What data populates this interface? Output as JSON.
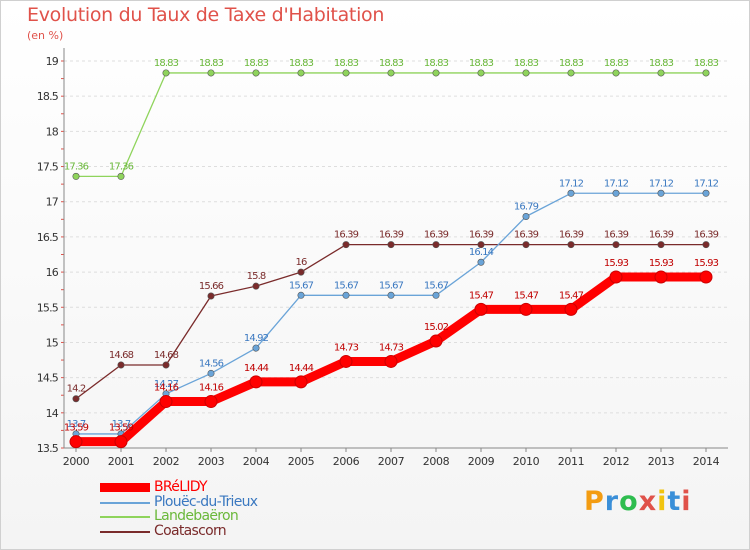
{
  "header": {
    "title": "Evolution du Taux de Taxe d'Habitation",
    "unit": "(en %)"
  },
  "brand": {
    "logo_text": "Proxiti",
    "colors": [
      "#f39c12",
      "#3a8fd8",
      "#2ebd4f",
      "#e0524a",
      "#f1c40f",
      "#3a8fd8",
      "#e0524a"
    ]
  },
  "chart_data": {
    "type": "line",
    "title": "Evolution du Taux de Taxe d'Habitation",
    "ylabel": "(en %)",
    "xlabel": "",
    "x": [
      "2000",
      "2001",
      "2002",
      "2003",
      "2004",
      "2005",
      "2006",
      "2007",
      "2008",
      "2009",
      "2010",
      "2011",
      "2012",
      "2013",
      "2014"
    ],
    "ylim": [
      13.5,
      19
    ],
    "yticks": [
      "13.5",
      "14",
      "14.5",
      "15",
      "15.5",
      "16",
      "16.5",
      "17",
      "17.5",
      "18",
      "18.5",
      "19"
    ],
    "grid": "horizontal",
    "legend_position": "bottom-left",
    "series": [
      {
        "name": "BRéLIDY",
        "color": "#ff0000",
        "values": [
          13.59,
          13.59,
          14.16,
          14.16,
          14.44,
          14.44,
          14.73,
          14.73,
          15.02,
          15.47,
          15.47,
          15.47,
          15.93,
          15.93,
          15.93
        ],
        "labels": [
          "13.59",
          "13.59",
          "14.16",
          "14.16",
          "14.44",
          "14.44",
          "14.73",
          "14.73",
          "15.02",
          "15.47",
          "15.47",
          "15.47",
          "15.93",
          "15.93",
          "15.93"
        ]
      },
      {
        "name": "Plouëc-du-Trieux",
        "color": "#6aa4d8",
        "values": [
          13.7,
          13.7,
          14.27,
          14.56,
          14.92,
          15.67,
          15.67,
          15.67,
          15.67,
          16.14,
          16.79,
          17.12,
          17.12,
          17.12,
          17.12
        ],
        "labels": [
          "13.7",
          "13.7",
          "14.27",
          "14.56",
          "14.92",
          "15.67",
          "15.67",
          "15.67",
          "15.67",
          "16.14",
          "16.79",
          "17.12",
          "17.12",
          "17.12",
          "17.12"
        ]
      },
      {
        "name": "Landebaëron",
        "color": "#8fd45c",
        "values": [
          17.36,
          17.36,
          18.83,
          18.83,
          18.83,
          18.83,
          18.83,
          18.83,
          18.83,
          18.83,
          18.83,
          18.83,
          18.83,
          18.83,
          18.83
        ],
        "labels": [
          "17.36",
          "17.36",
          "18.83",
          "18.83",
          "18.83",
          "18.83",
          "18.83",
          "18.83",
          "18.83",
          "18.83",
          "18.83",
          "18.83",
          "18.83",
          "18.83",
          "18.83"
        ]
      },
      {
        "name": "Coatascorn",
        "color": "#7a2b2b",
        "values": [
          14.2,
          14.68,
          14.68,
          15.66,
          15.8,
          16,
          16.39,
          16.39,
          16.39,
          16.39,
          16.39,
          16.39,
          16.39,
          16.39,
          16.39
        ],
        "labels": [
          "14.2",
          "14.68",
          "14.68",
          "15.66",
          "15.8",
          "16",
          "16.39",
          "16.39",
          "16.39",
          "16.39",
          "16.39",
          "16.39",
          "16.39",
          "16.39",
          "16.39"
        ]
      }
    ]
  }
}
